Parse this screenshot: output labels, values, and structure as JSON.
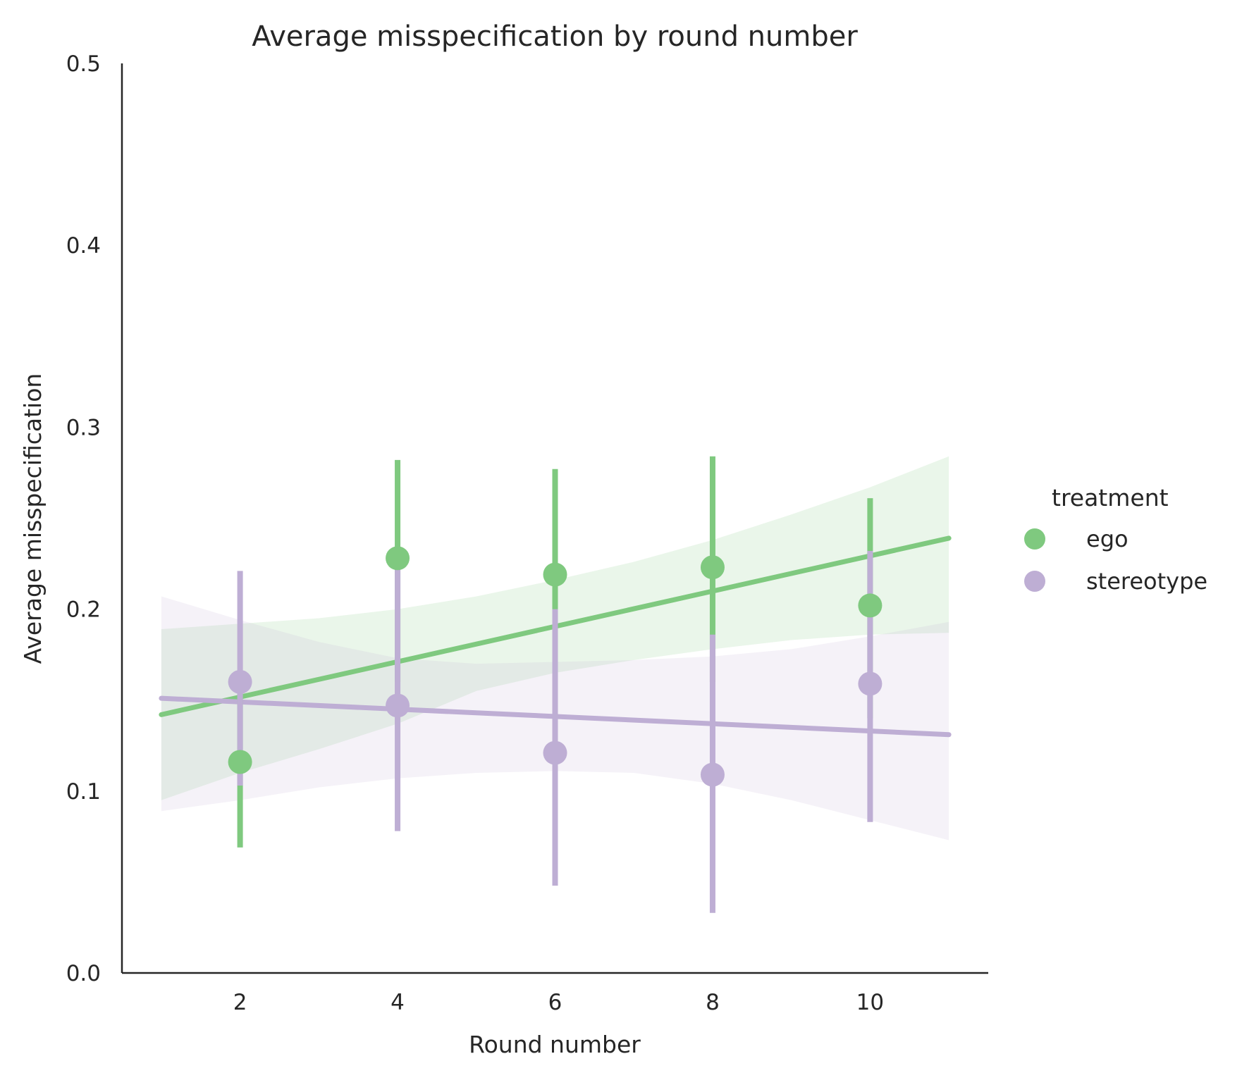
{
  "chart_data": {
    "type": "scatter",
    "title": "Average misspecification by round number",
    "xlabel": "Round number",
    "ylabel": "Average misspecification",
    "xlim": [
      0.5,
      11.5
    ],
    "ylim": [
      0.0,
      0.5
    ],
    "xticks": [
      2,
      4,
      6,
      8,
      10
    ],
    "yticks": [
      0.0,
      0.1,
      0.2,
      0.3,
      0.4,
      0.5
    ],
    "xtick_labels": [
      "2",
      "4",
      "6",
      "8",
      "10"
    ],
    "ytick_labels": [
      "0.0",
      "0.1",
      "0.2",
      "0.3",
      "0.4",
      "0.5"
    ],
    "grid": false,
    "legend": {
      "title": "treatment",
      "placement": "right"
    },
    "series": [
      {
        "name": "ego",
        "color": "#7fc97f",
        "band_color": "#e9f5e9",
        "x": [
          2,
          4,
          6,
          8,
          10
        ],
        "y": [
          0.116,
          0.228,
          0.219,
          0.223,
          0.202
        ],
        "ci_low": [
          0.069,
          0.16,
          0.16,
          0.16,
          0.14
        ],
        "ci_high": [
          0.156,
          0.282,
          0.277,
          0.284,
          0.261
        ],
        "fit": {
          "x0": 1,
          "y0": 0.142,
          "x1": 11,
          "y1": 0.239
        },
        "band": {
          "x": [
            1,
            2,
            3,
            4,
            5,
            6,
            7,
            8,
            9,
            10,
            11
          ],
          "low": [
            0.095,
            0.11,
            0.123,
            0.137,
            0.155,
            0.165,
            0.172,
            0.178,
            0.183,
            0.186,
            0.187
          ],
          "high": [
            0.189,
            0.192,
            0.195,
            0.2,
            0.207,
            0.216,
            0.226,
            0.238,
            0.252,
            0.267,
            0.284
          ]
        }
      },
      {
        "name": "stereotype",
        "color": "#beaed4",
        "band_color": "#f3eff7",
        "x": [
          2,
          4,
          6,
          8,
          10
        ],
        "y": [
          0.16,
          0.147,
          0.121,
          0.109,
          0.159
        ],
        "ci_low": [
          0.103,
          0.078,
          0.048,
          0.033,
          0.083
        ],
        "ci_high": [
          0.221,
          0.225,
          0.2,
          0.186,
          0.232
        ],
        "fit": {
          "x0": 1,
          "y0": 0.151,
          "x1": 11,
          "y1": 0.131
        },
        "band": {
          "x": [
            1,
            2,
            3,
            4,
            5,
            6,
            7,
            8,
            9,
            10,
            11
          ],
          "low": [
            0.089,
            0.095,
            0.102,
            0.107,
            0.11,
            0.111,
            0.11,
            0.104,
            0.095,
            0.084,
            0.073
          ],
          "high": [
            0.207,
            0.194,
            0.182,
            0.173,
            0.17,
            0.171,
            0.172,
            0.174,
            0.178,
            0.185,
            0.193
          ]
        }
      }
    ]
  }
}
